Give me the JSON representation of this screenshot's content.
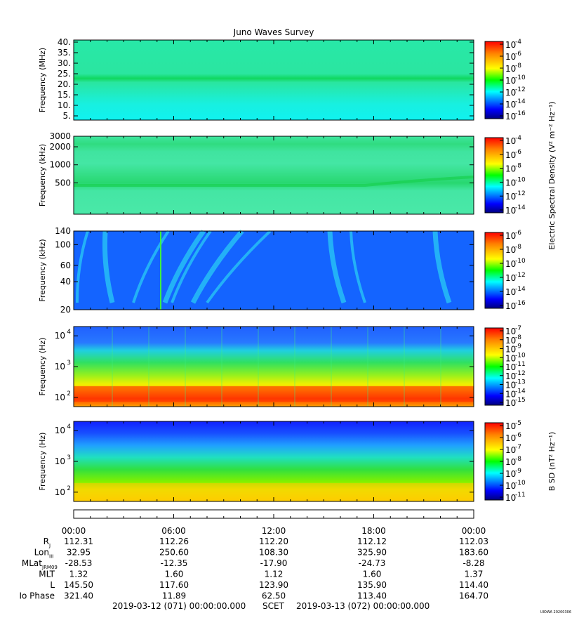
{
  "title": "Juno Waves Survey",
  "watermark": "UIOWA 20200306",
  "panels": [
    {
      "ylabel": "Frequency (MHz)",
      "yscale": "linear",
      "ylim": [
        3,
        41
      ],
      "yticks": [
        {
          "v": 5,
          "label": "5."
        },
        {
          "v": 10,
          "label": "10."
        },
        {
          "v": 15,
          "label": "15."
        },
        {
          "v": 20,
          "label": "20."
        },
        {
          "v": 25,
          "label": "25."
        },
        {
          "v": 30,
          "label": "30."
        },
        {
          "v": 35,
          "label": "35."
        },
        {
          "v": 40,
          "label": "40."
        }
      ],
      "cbar_ticks": [
        {
          "base": "10",
          "exp": "-4"
        },
        {
          "base": "10",
          "exp": "-6"
        },
        {
          "base": "10",
          "exp": "-8"
        },
        {
          "base": "10",
          "exp": "-10"
        },
        {
          "base": "10",
          "exp": "-12"
        },
        {
          "base": "10",
          "exp": "-14"
        },
        {
          "base": "10",
          "exp": "-16"
        }
      ],
      "cbar_label": ""
    },
    {
      "ylabel": "Frequency (kHz)",
      "yscale": "log",
      "ylim": [
        150,
        3000
      ],
      "yticks": [
        {
          "v": 3000,
          "label": "3000"
        },
        {
          "v": 2000,
          "label": "2000"
        },
        {
          "v": 1000,
          "label": "1000"
        },
        {
          "v": 500,
          "label": "500"
        }
      ],
      "cbar_ticks": [
        {
          "base": "10",
          "exp": "-4"
        },
        {
          "base": "10",
          "exp": "-6"
        },
        {
          "base": "10",
          "exp": "-8"
        },
        {
          "base": "10",
          "exp": "-10"
        },
        {
          "base": "10",
          "exp": "-12"
        },
        {
          "base": "10",
          "exp": "-14"
        }
      ],
      "cbar_label": ""
    },
    {
      "ylabel": "Frequency (kHz)",
      "yscale": "log",
      "ylim": [
        20,
        140
      ],
      "yticks": [
        {
          "v": 140,
          "label": "140"
        },
        {
          "v": 100,
          "label": "100"
        },
        {
          "v": 60,
          "label": "60"
        },
        {
          "v": 40,
          "label": "40"
        },
        {
          "v": 20,
          "label": "20"
        }
      ],
      "cbar_ticks": [
        {
          "base": "10",
          "exp": "-6"
        },
        {
          "base": "10",
          "exp": "-8"
        },
        {
          "base": "10",
          "exp": "-10"
        },
        {
          "base": "10",
          "exp": "-12"
        },
        {
          "base": "10",
          "exp": "-14"
        },
        {
          "base": "10",
          "exp": "-16"
        }
      ],
      "cbar_label": ""
    },
    {
      "ylabel": "Frequency (Hz)",
      "yscale": "log",
      "ylim": [
        50,
        20000
      ],
      "yticks": [
        {
          "v": 10000,
          "label": "10",
          "exp": "4"
        },
        {
          "v": 1000,
          "label": "10",
          "exp": "3"
        },
        {
          "v": 100,
          "label": "10",
          "exp": "2"
        }
      ],
      "cbar_ticks": [
        {
          "base": "10",
          "exp": "-7"
        },
        {
          "base": "10",
          "exp": "-8"
        },
        {
          "base": "10",
          "exp": "-9"
        },
        {
          "base": "10",
          "exp": "-10"
        },
        {
          "base": "10",
          "exp": "-11"
        },
        {
          "base": "10",
          "exp": "-12"
        },
        {
          "base": "10",
          "exp": "-13"
        },
        {
          "base": "10",
          "exp": "-14"
        },
        {
          "base": "10",
          "exp": "-15"
        }
      ],
      "cbar_label": ""
    },
    {
      "ylabel": "Frequency (Hz)",
      "yscale": "log",
      "ylim": [
        50,
        20000
      ],
      "yticks": [
        {
          "v": 10000,
          "label": "10",
          "exp": "4"
        },
        {
          "v": 1000,
          "label": "10",
          "exp": "3"
        },
        {
          "v": 100,
          "label": "10",
          "exp": "2"
        }
      ],
      "cbar_ticks": [
        {
          "base": "10",
          "exp": "-5"
        },
        {
          "base": "10",
          "exp": "-6"
        },
        {
          "base": "10",
          "exp": "-7"
        },
        {
          "base": "10",
          "exp": "-8"
        },
        {
          "base": "10",
          "exp": "-9"
        },
        {
          "base": "10",
          "exp": "-10"
        },
        {
          "base": "10",
          "exp": "-11"
        }
      ],
      "cbar_label": "B SD (nT² Hz⁻¹)"
    }
  ],
  "electric_cbar_label": "Electric Spectral Density (V² m⁻² Hz⁻¹)",
  "time_axis": [
    "00:00",
    "06:00",
    "12:00",
    "18:00",
    "00:00"
  ],
  "ephemeris": [
    {
      "label": "R",
      "sub": "J",
      "values": [
        "112.31",
        "112.26",
        "112.20",
        "112.12",
        "112.03"
      ]
    },
    {
      "label": "Lon",
      "sub": "III",
      "values": [
        "32.95",
        "250.60",
        "108.30",
        "325.90",
        "183.60"
      ]
    },
    {
      "label": "MLat",
      "sub": "JRM09",
      "values": [
        "-28.53",
        "-12.35",
        "-17.90",
        "-24.73",
        "-8.28"
      ]
    },
    {
      "label": "MLT",
      "sub": "",
      "values": [
        "1.32",
        "1.60",
        "1.12",
        "1.60",
        "1.37"
      ]
    },
    {
      "label": "L",
      "sub": "",
      "values": [
        "145.50",
        "117.60",
        "123.90",
        "135.90",
        "114.40"
      ]
    },
    {
      "label": "Io Phase",
      "sub": "",
      "values": [
        "321.40",
        "11.89",
        "62.50",
        "113.40",
        "164.70"
      ]
    }
  ],
  "footer": {
    "start": "2019-03-12 (071) 00:00:00.000",
    "scet": "SCET",
    "end": "2019-03-13 (072) 00:00:00.000"
  },
  "colors": {
    "jet": [
      "#00007f",
      "#0000ff",
      "#007fff",
      "#00ffff",
      "#7fff7f",
      "#00e000",
      "#ffff00",
      "#ff7f00",
      "#ff0000",
      "#7f0000"
    ]
  },
  "chart_data": {
    "type": "heatmap",
    "title": "Juno Waves Survey",
    "x_range": [
      "2019-03-12 00:00",
      "2019-03-13 00:00"
    ],
    "panels": [
      {
        "ylabel": "Frequency (MHz)",
        "ylim": [
          3,
          41
        ],
        "bands": [
          {
            "f": 21,
            "level": "green"
          }
        ]
      },
      {
        "ylabel": "Frequency (kHz)",
        "ylim": [
          150,
          3000
        ],
        "bands": [
          {
            "f": 450,
            "level": "green"
          },
          {
            "f": 2000,
            "level": "green"
          }
        ]
      },
      {
        "ylabel": "Frequency (kHz)",
        "ylim": [
          20,
          140
        ],
        "background": "blue"
      },
      {
        "ylabel": "Frequency (Hz)",
        "ylim": [
          50,
          20000
        ],
        "background": "yellow-red at low freq"
      },
      {
        "ylabel": "Frequency (Hz)",
        "ylim": [
          50,
          20000
        ],
        "background": "blue high, yellow low"
      }
    ]
  }
}
